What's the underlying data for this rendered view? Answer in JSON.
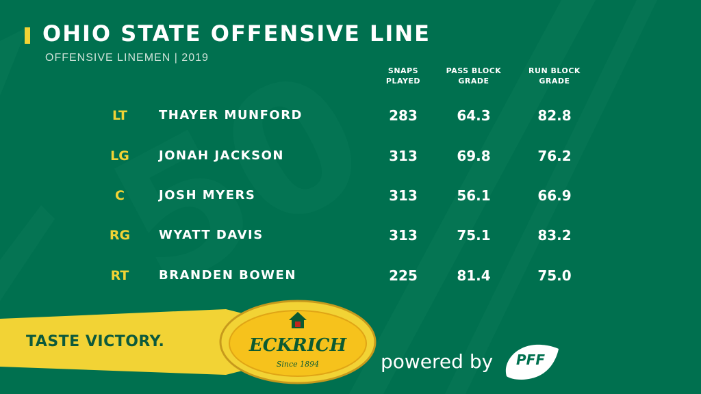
{
  "header": {
    "title": "OHIO STATE OFFENSIVE LINE",
    "subtitle": "OFFENSIVE LINEMEN | 2019"
  },
  "columns": {
    "snaps": "SNAPS\nPLAYED",
    "pass": "PASS BLOCK\nGRADE",
    "run": "RUN BLOCK\nGRADE"
  },
  "rows": [
    {
      "pos": "LT",
      "name": "THAYER MUNFORD",
      "snaps": "283",
      "pass": "64.3",
      "run": "82.8"
    },
    {
      "pos": "LG",
      "name": "JONAH JACKSON",
      "snaps": "313",
      "pass": "69.8",
      "run": "76.2"
    },
    {
      "pos": "C",
      "name": "JOSH MYERS",
      "snaps": "313",
      "pass": "56.1",
      "run": "66.9"
    },
    {
      "pos": "RG",
      "name": "WYATT DAVIS",
      "snaps": "313",
      "pass": "75.1",
      "run": "83.2"
    },
    {
      "pos": "RT",
      "name": "BRANDEN BOWEN",
      "snaps": "225",
      "pass": "81.4",
      "run": "75.0"
    }
  ],
  "footer": {
    "slogan": "TASTE VICTORY.",
    "brand": "ECKRICH",
    "since": "Since 1894",
    "powered": "powered by",
    "pff": "PFF"
  },
  "colors": {
    "background": "#00704f",
    "accent": "#f2d335",
    "text": "#ffffff"
  }
}
